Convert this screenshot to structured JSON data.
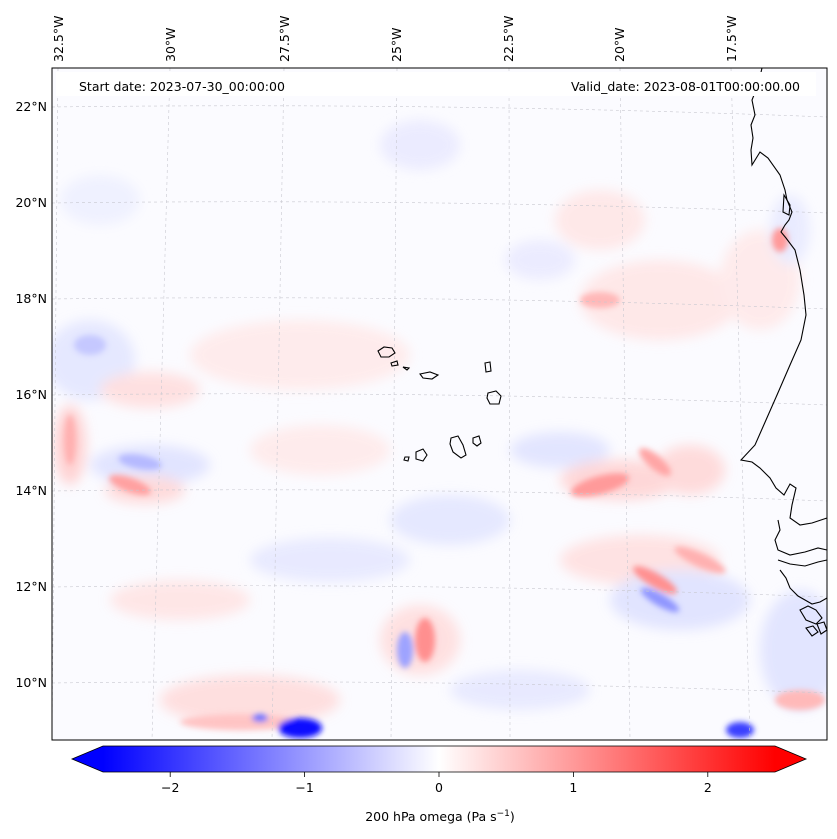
{
  "header": {
    "start_date": "Start date: 2023-07-30_00:00:00",
    "valid_date": "Valid_date: 2023-08-01T00:00:00.00"
  },
  "map": {
    "field": "200 hPa omega",
    "lon_labels": [
      "32.5°W",
      "30°W",
      "27.5°W",
      "25°W",
      "22.5°W",
      "20°W",
      "17.5°W"
    ],
    "lat_labels": [
      "22°N",
      "20°N",
      "18°N",
      "16°N",
      "14°N",
      "12°N",
      "10°N"
    ],
    "gridlines": true,
    "features": [
      "Cabo Verde islands",
      "West African coastline (Mauritania, Senegal, Guinea-Bissau)"
    ]
  },
  "colorbar": {
    "label": "200 hPa omega (Pa s",
    "label_sup": "−1",
    "label_close": ")",
    "ticks": [
      "−2",
      "−1",
      "0",
      "1",
      "2"
    ],
    "tick_values": [
      -2,
      -1,
      0,
      1,
      2
    ],
    "range": [
      -2.5,
      2.5
    ],
    "extend": "both",
    "colormap": "bwr",
    "color_min": "#0000ff",
    "color_mid": "#ffffff",
    "color_max": "#ff0000"
  }
}
